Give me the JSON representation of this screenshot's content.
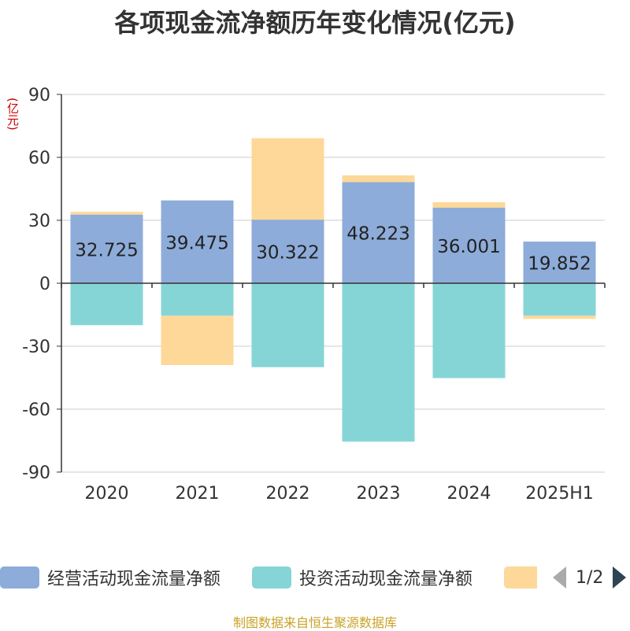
{
  "title": "各项现金流净额历年变化情况(亿元)",
  "unit": "(亿元)",
  "legend": {
    "items": [
      {
        "label": "经营活动现金流量净额",
        "color": "#8eacd9"
      },
      {
        "label": "投资活动现金流量净额",
        "color": "#86d5d6"
      },
      {
        "label": "",
        "color": "#fed898"
      }
    ],
    "page": "1/2"
  },
  "footer": "制图数据来自恒生聚源数据库",
  "chart_data": {
    "type": "bar",
    "stacked": true,
    "categories": [
      "2020",
      "2021",
      "2022",
      "2023",
      "2024",
      "2025H1"
    ],
    "ylim": [
      -90,
      90
    ],
    "yticks": [
      90,
      60,
      30,
      0,
      -30,
      -60,
      -90
    ],
    "grid": true,
    "series": [
      {
        "name": "经营活动现金流量净额",
        "color": "#8eacd9",
        "values": [
          32.725,
          39.475,
          30.322,
          48.223,
          36.001,
          19.852
        ],
        "labels": [
          "32.725",
          "39.475",
          "30.322",
          "48.223",
          "36.001",
          "19.852"
        ]
      },
      {
        "name": "投资活动现金流量净额",
        "color": "#86d5d6",
        "values": [
          -20.0,
          -15.5,
          -40.0,
          -75.5,
          -45.2,
          -15.5
        ]
      },
      {
        "color": "#fed898",
        "values": [
          1.3,
          -23.5,
          38.8,
          3.2,
          2.6,
          -1.5
        ]
      }
    ]
  }
}
